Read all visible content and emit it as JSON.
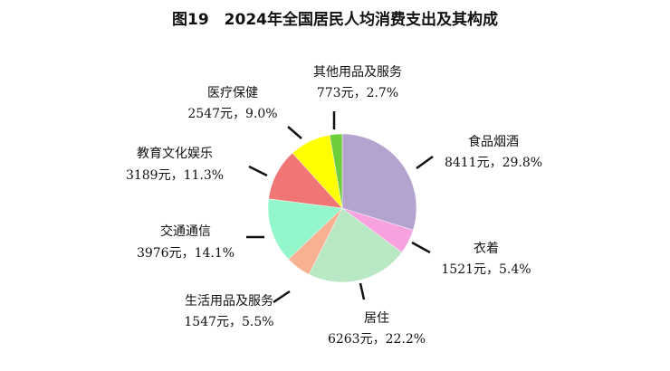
{
  "chart_data": {
    "type": "pie",
    "title": "图19　2024年全国居民人均消费支出及其构成",
    "categories": [
      "食品烟酒",
      "衣着",
      "居住",
      "生活用品及服务",
      "交通通信",
      "教育文化娱乐",
      "医疗保健",
      "其他用品及服务"
    ],
    "values": [
      29.8,
      5.4,
      22.2,
      5.5,
      14.1,
      11.3,
      9.0,
      2.7
    ],
    "value_labels": [
      "8411元，29.8%",
      "1521元，5.4%",
      "6263元，22.2%",
      "1547元，5.5%",
      "3976元，14.1%",
      "3189元，11.3%",
      "2547元，9.0%",
      "773元，2.7%"
    ],
    "colors": [
      "#b3a3cf",
      "#f7a1df",
      "#b9e8c4",
      "#f8b193",
      "#93f7cb",
      "#f07575",
      "#ffff00",
      "#6ccf3a"
    ]
  }
}
